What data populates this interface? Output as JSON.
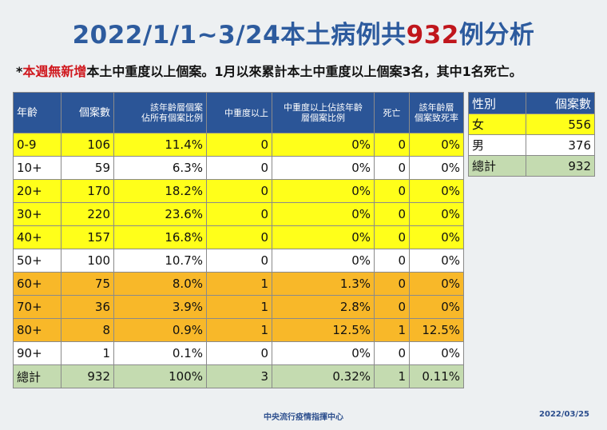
{
  "title": {
    "prefix": "2022/1/1~3/24本土病例共",
    "highlight": "932",
    "suffix": "例分析"
  },
  "subtitle": {
    "star": "*",
    "red_text": "本週無新增",
    "rest": "本土中重度以上個案。1月以來累計本土中重度以上個案3名，其中1名死亡。"
  },
  "main_table": {
    "headers": [
      "年齡",
      "個案數",
      "該年齡層個案\n佔所有個案比例",
      "中重度以上",
      "中重度以上佔該年齡\n層個案比例",
      "死亡",
      "該年齡層\n個案致死率"
    ],
    "rows": [
      [
        "0-9",
        "106",
        "11.4%",
        "0",
        "0%",
        "0",
        "0%"
      ],
      [
        "10+",
        "59",
        "6.3%",
        "0",
        "0%",
        "0",
        "0%"
      ],
      [
        "20+",
        "170",
        "18.2%",
        "0",
        "0%",
        "0",
        "0%"
      ],
      [
        "30+",
        "220",
        "23.6%",
        "0",
        "0%",
        "0",
        "0%"
      ],
      [
        "40+",
        "157",
        "16.8%",
        "0",
        "0%",
        "0",
        "0%"
      ],
      [
        "50+",
        "100",
        "10.7%",
        "0",
        "0%",
        "0",
        "0%"
      ],
      [
        "60+",
        "75",
        "8.0%",
        "1",
        "1.3%",
        "0",
        "0%"
      ],
      [
        "70+",
        "36",
        "3.9%",
        "1",
        "2.8%",
        "0",
        "0%"
      ],
      [
        "80+",
        "8",
        "0.9%",
        "1",
        "12.5%",
        "1",
        "12.5%"
      ],
      [
        "90+",
        "1",
        "0.1%",
        "0",
        "0%",
        "0",
        "0%"
      ],
      [
        "總計",
        "932",
        "100%",
        "3",
        "0.32%",
        "1",
        "0.11%"
      ]
    ],
    "row_colors": [
      "yellow",
      "white",
      "yellow",
      "yellow",
      "yellow",
      "white",
      "orange",
      "orange",
      "orange",
      "white",
      "green"
    ]
  },
  "side_table": {
    "headers": [
      "性別",
      "個案數"
    ],
    "rows": [
      [
        "女",
        "556"
      ],
      [
        "男",
        "376"
      ],
      [
        "總計",
        "932"
      ]
    ],
    "row_colors": [
      "yellow",
      "white",
      "green"
    ]
  },
  "footer": {
    "source": "中央流行疫情指揮中心",
    "date": "2022/03/25"
  },
  "colors": {
    "title_blue": "#2d5b9e",
    "highlight_red": "#c0161c",
    "header_blue": "#2b5597",
    "yellow": "#ffff1a",
    "orange": "#f8b829",
    "green": "#c4dbb0"
  }
}
